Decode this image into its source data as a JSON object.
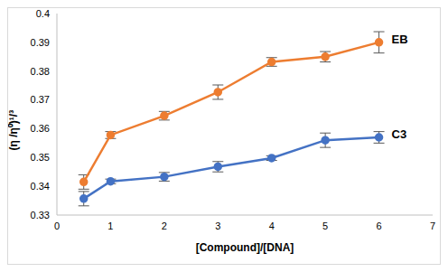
{
  "chart_data": {
    "type": "line",
    "x_label": "[Compound]/[DNA]",
    "y_label": "(η /η⁰)¹/³",
    "x": [
      0.5,
      1,
      2,
      3,
      4,
      5,
      6
    ],
    "xlim": [
      0,
      7
    ],
    "xticks": [
      0,
      1,
      2,
      3,
      4,
      5,
      6,
      7
    ],
    "ylim": [
      0.33,
      0.4
    ],
    "yticks": [
      0.33,
      0.34,
      0.35,
      0.36,
      0.37,
      0.38,
      0.39,
      0.4
    ],
    "grid": false,
    "marker": "circle",
    "series": [
      {
        "name": "EB",
        "color": "#ed7d31",
        "values": [
          0.3415,
          0.3578,
          0.3645,
          0.3727,
          0.3832,
          0.385,
          0.39
        ],
        "errors": [
          0.0025,
          0.0012,
          0.0015,
          0.0025,
          0.0015,
          0.0018,
          0.0037
        ]
      },
      {
        "name": "C3",
        "color": "#4472c4",
        "values": [
          0.3357,
          0.3417,
          0.3433,
          0.3468,
          0.3498,
          0.356,
          0.357
        ],
        "errors": [
          0.0025,
          0.0008,
          0.0015,
          0.0018,
          0.0008,
          0.0025,
          0.002
        ]
      }
    ]
  }
}
